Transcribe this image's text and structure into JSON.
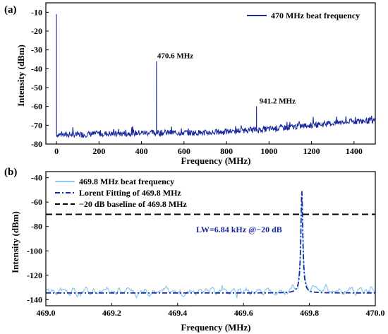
{
  "chart_data": [
    {
      "panel_label": "(a)",
      "type": "line",
      "xlabel": "Frequency (MHz)",
      "ylabel": "Intensity (dBm)",
      "xlim": [
        -50,
        1500
      ],
      "ylim": [
        -80,
        -5
      ],
      "xticks": [
        0,
        200,
        400,
        600,
        800,
        1000,
        1200,
        1400
      ],
      "yticks": [
        -80,
        -70,
        -60,
        -50,
        -40,
        -30,
        -20,
        -10
      ],
      "legend_position": "top-right",
      "series": [
        {
          "name": "470 MHz beat frequency",
          "color": "#1a2a9c",
          "baseline_x": [
            0,
            100,
            200,
            300,
            400,
            470,
            600,
            700,
            800,
            900,
            941,
            1000,
            1100,
            1200,
            1300,
            1400,
            1500
          ],
          "baseline_y": [
            -75,
            -75,
            -74.5,
            -74.5,
            -74,
            -74,
            -74,
            -74,
            -73.5,
            -72.5,
            -72.5,
            -72,
            -71,
            -70,
            -69,
            -68,
            -67.5
          ],
          "peaks": [
            {
              "x": 0,
              "y": -11
            },
            {
              "x": 470.6,
              "y": -36
            },
            {
              "x": 941.2,
              "y": -60
            }
          ]
        }
      ],
      "annotations": [
        {
          "text": "470.6 MHz",
          "x": 470.6,
          "y": -36
        },
        {
          "text": "941.2 MHz",
          "x": 941.2,
          "y": -60
        }
      ]
    },
    {
      "panel_label": "(b)",
      "type": "line",
      "xlabel": "Frequency (MHz)",
      "ylabel": "Intensity (dBm)",
      "xlim": [
        469.0,
        470.0
      ],
      "ylim": [
        -145,
        -35
      ],
      "xticks": [
        469.0,
        469.2,
        469.4,
        469.6,
        469.8,
        470.0
      ],
      "xtick_labels": [
        "469.0",
        "469.2",
        "469.4",
        "469.6",
        "469.8",
        "470.0"
      ],
      "yticks": [
        -140,
        -120,
        -100,
        -80,
        -60,
        -40
      ],
      "legend_position": "top-left",
      "series": [
        {
          "name": "469.8 MHz beat frequency",
          "color": "#8ecbf0",
          "style": "solid",
          "baseline": -133,
          "peak_x": 469.777,
          "peak_y": -52
        },
        {
          "name": "Lorent Fitting of 469.8 MHz",
          "color": "#1a2a9c",
          "style": "dash-dot",
          "baseline": -134.5,
          "peak_x": 469.777,
          "peak_y": -51
        },
        {
          "name": "−20 dB baseline of 469.8 MHz",
          "color": "#000000",
          "style": "dashed",
          "y": -70
        }
      ],
      "annotations": [
        {
          "text": "LW=6.84 kHz @−20 dB",
          "color": "#1a2a9c"
        }
      ]
    }
  ]
}
